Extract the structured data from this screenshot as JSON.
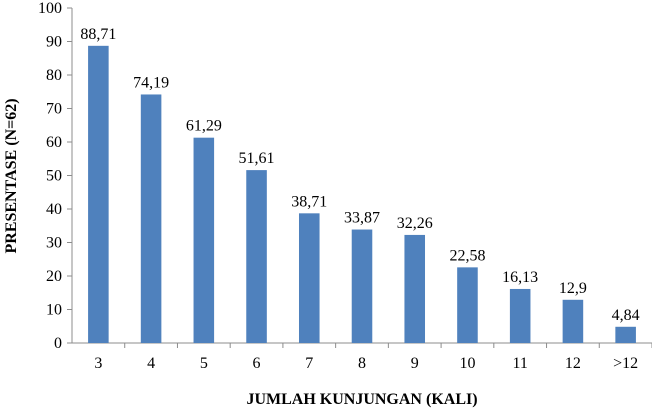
{
  "chart_data": {
    "type": "bar",
    "categories": [
      "3",
      "4",
      "5",
      "6",
      "7",
      "8",
      "9",
      "10",
      "11",
      "12",
      ">12"
    ],
    "values": [
      88.71,
      74.19,
      61.29,
      51.61,
      38.71,
      33.87,
      32.26,
      22.58,
      16.13,
      12.9,
      4.84
    ],
    "data_labels": [
      "88,71",
      "74,19",
      "61,29",
      "51,61",
      "38,71",
      "33,87",
      "32,26",
      "22,58",
      "16,13",
      "12,9",
      "4,84"
    ],
    "y_ticks": [
      "0",
      "10",
      "20",
      "30",
      "40",
      "50",
      "60",
      "70",
      "80",
      "90",
      "100"
    ],
    "ylim": [
      0,
      100
    ],
    "xlabel": "JUMLAH KUNJUNGAN (KALI)",
    "ylabel": "PRESENTASE (N=62)",
    "bar_color": "#4f81bd",
    "grid": false,
    "legend": "none"
  }
}
